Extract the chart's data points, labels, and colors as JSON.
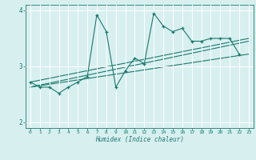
{
  "xlabel": "Humidex (Indice chaleur)",
  "xlim": [
    -0.5,
    23.5
  ],
  "ylim": [
    1.9,
    4.1
  ],
  "yticks": [
    2,
    3,
    4
  ],
  "xticks": [
    0,
    1,
    2,
    3,
    4,
    5,
    6,
    7,
    8,
    9,
    10,
    11,
    12,
    13,
    14,
    15,
    16,
    17,
    18,
    19,
    20,
    21,
    22,
    23
  ],
  "bg_color": "#d8eff0",
  "line_color": "#1a7a6e",
  "grid_color": "#ffffff",
  "series": {
    "jagged": {
      "x": [
        0,
        1,
        2,
        3,
        4,
        5,
        6,
        7,
        8,
        9,
        10,
        11,
        12,
        13,
        14,
        15,
        16,
        17,
        18,
        19,
        20,
        21,
        22
      ],
      "y": [
        2.72,
        2.63,
        2.63,
        2.52,
        2.63,
        2.72,
        2.82,
        3.92,
        3.62,
        2.63,
        2.92,
        3.15,
        3.05,
        3.95,
        3.72,
        3.62,
        3.68,
        3.45,
        3.45,
        3.5,
        3.5,
        3.5,
        3.22
      ]
    },
    "line1": {
      "x": [
        0,
        23
      ],
      "y": [
        2.63,
        3.22
      ]
    },
    "line2": {
      "x": [
        0,
        23
      ],
      "y": [
        2.63,
        3.45
      ]
    },
    "line3": {
      "x": [
        0,
        23
      ],
      "y": [
        2.72,
        3.5
      ]
    }
  }
}
